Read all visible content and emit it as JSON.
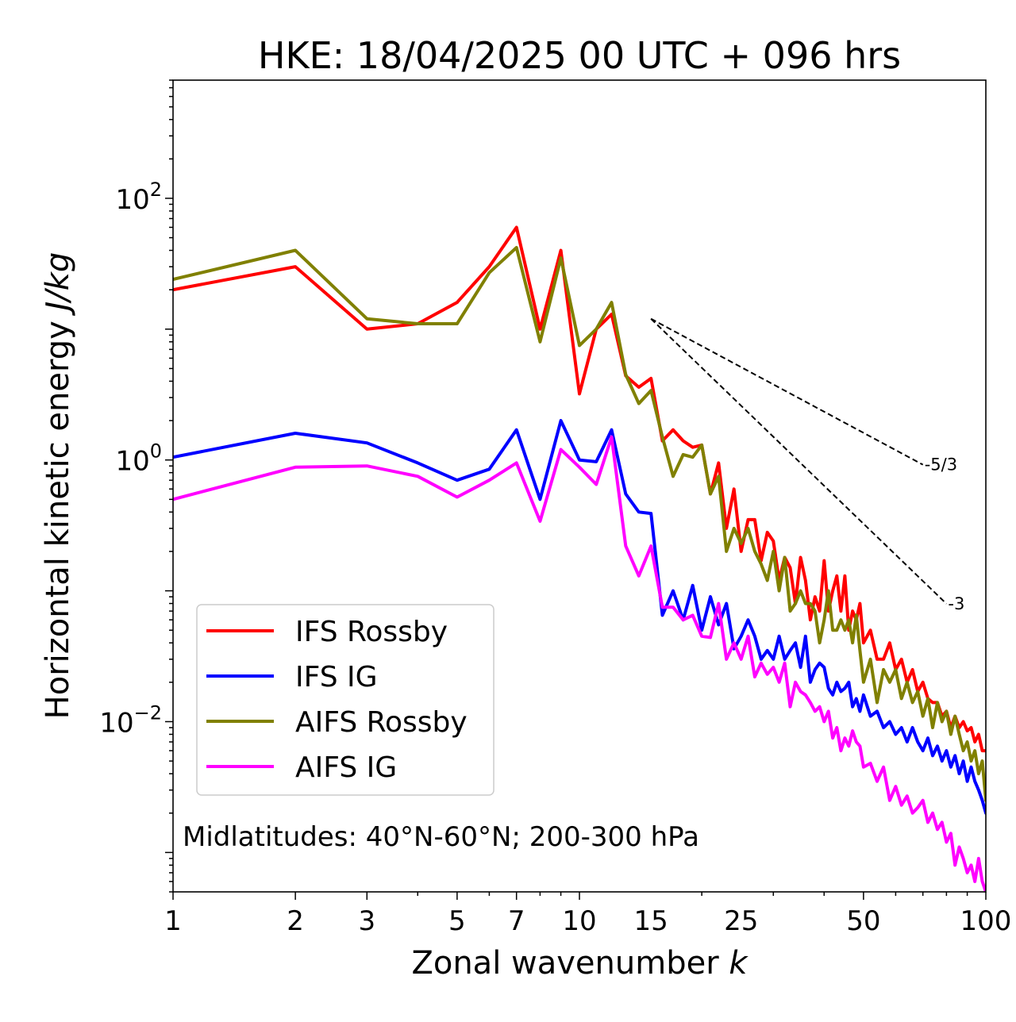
{
  "chart_data": {
    "type": "line",
    "title": "HKE: 18/04/2025 00 UTC + 096 hrs",
    "xlabel_prefix": "Zonal wavenumber ",
    "xlabel_var": "k",
    "ylabel_prefix": "Horizontal kinetic energy ",
    "ylabel_unit": "J/kg",
    "x_scale": "log",
    "y_scale": "log",
    "xlim": [
      1,
      100
    ],
    "ylim": [
      0.0005,
      800
    ],
    "grid": false,
    "x_ticks": [
      {
        "value": 1,
        "label": "1"
      },
      {
        "value": 2,
        "label": "2"
      },
      {
        "value": 3,
        "label": "3"
      },
      {
        "value": 5,
        "label": "5"
      },
      {
        "value": 7,
        "label": "7"
      },
      {
        "value": 10,
        "label": "10"
      },
      {
        "value": 15,
        "label": "15"
      },
      {
        "value": 25,
        "label": "25"
      },
      {
        "value": 50,
        "label": "50"
      },
      {
        "value": 100,
        "label": "100"
      }
    ],
    "y_ticks": [
      {
        "value": 0.01,
        "base": "10",
        "exp": "−2"
      },
      {
        "value": 1,
        "base": "10",
        "exp": "0"
      },
      {
        "value": 100,
        "base": "10",
        "exp": "2"
      }
    ],
    "annotation": "Midlatitudes: 40°N-60°N; 200-300 hPa",
    "legend_position": "lower-left",
    "reference_lines": [
      {
        "label": "-5/3",
        "x": [
          15,
          70
        ],
        "y": [
          12.0,
          0.92
        ]
      },
      {
        "label": "-3",
        "x": [
          15,
          80
        ],
        "y": [
          12.0,
          0.0796
        ]
      }
    ],
    "series": [
      {
        "name": "IFS Rossby",
        "color": "#ff0000",
        "x": [
          1,
          2,
          3,
          4,
          5,
          6,
          7,
          8,
          9,
          10,
          11,
          12,
          13,
          14,
          15,
          16,
          17,
          18,
          19,
          20,
          21,
          22,
          23,
          24,
          25,
          26,
          27,
          28,
          29,
          30,
          31,
          32,
          33,
          34,
          35,
          36,
          37,
          38,
          39,
          40,
          41,
          42,
          43,
          44,
          45,
          46,
          47,
          48,
          49,
          50,
          52,
          54,
          56,
          58,
          60,
          62,
          64,
          66,
          68,
          70,
          72,
          74,
          76,
          78,
          80,
          82,
          84,
          86,
          88,
          90,
          92,
          94,
          96,
          98,
          100
        ],
        "y": [
          20,
          30,
          10,
          11,
          16,
          30,
          60,
          10,
          40,
          3.2,
          10,
          13,
          4.4,
          3.6,
          4.2,
          1.4,
          1.7,
          1.4,
          1.25,
          1.3,
          0.55,
          0.95,
          0.3,
          0.6,
          0.2,
          0.35,
          0.35,
          0.17,
          0.28,
          0.24,
          0.12,
          0.18,
          0.15,
          0.08,
          0.18,
          0.12,
          0.06,
          0.09,
          0.07,
          0.17,
          0.07,
          0.1,
          0.13,
          0.07,
          0.13,
          0.05,
          0.07,
          0.06,
          0.08,
          0.04,
          0.05,
          0.03,
          0.03,
          0.04,
          0.025,
          0.03,
          0.02,
          0.025,
          0.017,
          0.02,
          0.015,
          0.014,
          0.014,
          0.011,
          0.012,
          0.009,
          0.011,
          0.009,
          0.01,
          0.0085,
          0.009,
          0.007,
          0.008,
          0.006,
          0.006
        ]
      },
      {
        "name": "IFS IG",
        "color": "#0000ff",
        "x": [
          1,
          2,
          3,
          4,
          5,
          6,
          7,
          8,
          9,
          10,
          11,
          12,
          13,
          14,
          15,
          16,
          17,
          18,
          19,
          20,
          21,
          22,
          23,
          24,
          25,
          26,
          27,
          28,
          29,
          30,
          31,
          32,
          33,
          34,
          35,
          36,
          37,
          38,
          39,
          40,
          41,
          42,
          43,
          44,
          45,
          46,
          47,
          48,
          49,
          50,
          52,
          54,
          56,
          58,
          60,
          62,
          64,
          66,
          68,
          70,
          72,
          74,
          76,
          78,
          80,
          82,
          84,
          86,
          88,
          90,
          92,
          94,
          96,
          98,
          100
        ],
        "y": [
          1.05,
          1.6,
          1.35,
          0.95,
          0.7,
          0.85,
          1.7,
          0.5,
          2.0,
          1.0,
          0.97,
          1.7,
          0.55,
          0.4,
          0.39,
          0.065,
          0.1,
          0.06,
          0.11,
          0.05,
          0.09,
          0.055,
          0.08,
          0.036,
          0.045,
          0.06,
          0.045,
          0.03,
          0.035,
          0.03,
          0.045,
          0.03,
          0.035,
          0.04,
          0.026,
          0.045,
          0.02,
          0.025,
          0.028,
          0.026,
          0.018,
          0.016,
          0.02,
          0.017,
          0.018,
          0.02,
          0.013,
          0.015,
          0.012,
          0.016,
          0.011,
          0.012,
          0.009,
          0.01,
          0.008,
          0.009,
          0.007,
          0.009,
          0.007,
          0.006,
          0.0075,
          0.0055,
          0.0065,
          0.005,
          0.006,
          0.0045,
          0.0055,
          0.004,
          0.005,
          0.0035,
          0.0045,
          0.0035,
          0.003,
          0.0025,
          0.002
        ]
      },
      {
        "name": "AIFS Rossby",
        "color": "#808000",
        "x": [
          1,
          2,
          3,
          4,
          5,
          6,
          7,
          8,
          9,
          10,
          11,
          12,
          13,
          14,
          15,
          16,
          17,
          18,
          19,
          20,
          21,
          22,
          23,
          24,
          25,
          26,
          27,
          28,
          29,
          30,
          31,
          32,
          33,
          34,
          35,
          36,
          37,
          38,
          39,
          40,
          41,
          42,
          43,
          44,
          45,
          46,
          47,
          48,
          49,
          50,
          52,
          54,
          56,
          58,
          60,
          62,
          64,
          66,
          68,
          70,
          72,
          74,
          76,
          78,
          80,
          82,
          84,
          86,
          88,
          90,
          92,
          94,
          96,
          98,
          100
        ],
        "y": [
          24,
          40,
          12,
          11,
          11,
          27,
          42,
          8,
          35,
          7.5,
          10,
          16,
          4.5,
          2.7,
          3.4,
          1.5,
          0.75,
          1.1,
          1.05,
          1.3,
          0.55,
          0.75,
          0.2,
          0.3,
          0.23,
          0.3,
          0.2,
          0.16,
          0.12,
          0.2,
          0.1,
          0.18,
          0.07,
          0.08,
          0.1,
          0.08,
          0.08,
          0.07,
          0.04,
          0.06,
          0.1,
          0.05,
          0.05,
          0.06,
          0.05,
          0.06,
          0.04,
          0.065,
          0.035,
          0.02,
          0.03,
          0.014,
          0.025,
          0.02,
          0.025,
          0.015,
          0.02,
          0.014,
          0.017,
          0.011,
          0.015,
          0.009,
          0.014,
          0.01,
          0.012,
          0.008,
          0.011,
          0.008,
          0.006,
          0.007,
          0.005,
          0.006,
          0.004,
          0.005,
          0.0025
        ]
      },
      {
        "name": "AIFS IG",
        "color": "#ff00ff",
        "x": [
          1,
          2,
          3,
          4,
          5,
          6,
          7,
          8,
          9,
          10,
          11,
          12,
          13,
          14,
          15,
          16,
          17,
          18,
          19,
          20,
          21,
          22,
          23,
          24,
          25,
          26,
          27,
          28,
          29,
          30,
          31,
          32,
          33,
          34,
          35,
          36,
          37,
          38,
          39,
          40,
          41,
          42,
          43,
          44,
          45,
          46,
          47,
          48,
          49,
          50,
          52,
          54,
          56,
          58,
          60,
          62,
          64,
          66,
          68,
          70,
          72,
          74,
          76,
          78,
          80,
          82,
          84,
          86,
          88,
          90,
          92,
          94,
          96,
          98,
          100
        ],
        "y": [
          0.5,
          0.88,
          0.9,
          0.75,
          0.52,
          0.7,
          0.95,
          0.34,
          1.2,
          0.88,
          0.65,
          1.5,
          0.22,
          0.13,
          0.22,
          0.075,
          0.075,
          0.06,
          0.065,
          0.045,
          0.044,
          0.08,
          0.03,
          0.04,
          0.03,
          0.045,
          0.022,
          0.028,
          0.023,
          0.026,
          0.02,
          0.028,
          0.013,
          0.02,
          0.017,
          0.016,
          0.014,
          0.012,
          0.013,
          0.01,
          0.012,
          0.0075,
          0.009,
          0.006,
          0.0075,
          0.0065,
          0.0085,
          0.007,
          0.0065,
          0.0045,
          0.0048,
          0.0035,
          0.0045,
          0.0025,
          0.0032,
          0.0023,
          0.0027,
          0.002,
          0.0022,
          0.0025,
          0.0017,
          0.002,
          0.0015,
          0.0017,
          0.0012,
          0.0014,
          0.0008,
          0.0011,
          0.0009,
          0.0007,
          0.0008,
          0.0006,
          0.0009,
          0.0006,
          0.0005
        ]
      }
    ]
  }
}
